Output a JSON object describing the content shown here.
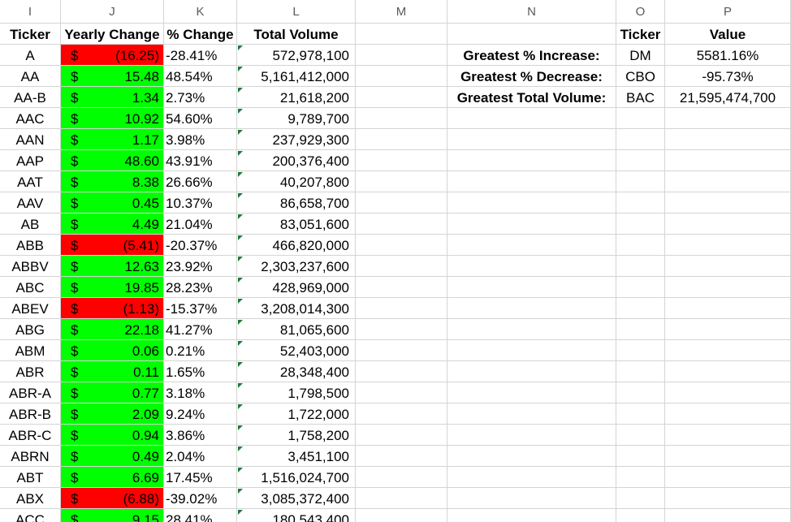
{
  "columns": [
    "I",
    "J",
    "K",
    "L",
    "M",
    "N",
    "O",
    "P"
  ],
  "headers": {
    "ticker": "Ticker",
    "yearly_change": "Yearly Change",
    "pct_change": "% Change",
    "total_volume": "Total Volume",
    "summary_ticker": "Ticker",
    "summary_value": "Value"
  },
  "colors": {
    "positive": "#00ff00",
    "negative": "#ff0000",
    "gridline": "#d4d4d4"
  },
  "currency_symbol": "$",
  "rows": [
    {
      "ticker": "A",
      "change": "(16.25)",
      "pct": "-28.41%",
      "volume": "572,978,100",
      "sign": "neg"
    },
    {
      "ticker": "AA",
      "change": "15.48",
      "pct": "48.54%",
      "volume": "5,161,412,000",
      "sign": "pos"
    },
    {
      "ticker": "AA-B",
      "change": "1.34",
      "pct": "2.73%",
      "volume": "21,618,200",
      "sign": "pos"
    },
    {
      "ticker": "AAC",
      "change": "10.92",
      "pct": "54.60%",
      "volume": "9,789,700",
      "sign": "pos"
    },
    {
      "ticker": "AAN",
      "change": "1.17",
      "pct": "3.98%",
      "volume": "237,929,300",
      "sign": "pos"
    },
    {
      "ticker": "AAP",
      "change": "48.60",
      "pct": "43.91%",
      "volume": "200,376,400",
      "sign": "pos"
    },
    {
      "ticker": "AAT",
      "change": "8.38",
      "pct": "26.66%",
      "volume": "40,207,800",
      "sign": "pos"
    },
    {
      "ticker": "AAV",
      "change": "0.45",
      "pct": "10.37%",
      "volume": "86,658,700",
      "sign": "pos"
    },
    {
      "ticker": "AB",
      "change": "4.49",
      "pct": "21.04%",
      "volume": "83,051,600",
      "sign": "pos"
    },
    {
      "ticker": "ABB",
      "change": "(5.41)",
      "pct": "-20.37%",
      "volume": "466,820,000",
      "sign": "neg"
    },
    {
      "ticker": "ABBV",
      "change": "12.63",
      "pct": "23.92%",
      "volume": "2,303,237,600",
      "sign": "pos"
    },
    {
      "ticker": "ABC",
      "change": "19.85",
      "pct": "28.23%",
      "volume": "428,969,000",
      "sign": "pos"
    },
    {
      "ticker": "ABEV",
      "change": "(1.13)",
      "pct": "-15.37%",
      "volume": "3,208,014,300",
      "sign": "neg"
    },
    {
      "ticker": "ABG",
      "change": "22.18",
      "pct": "41.27%",
      "volume": "81,065,600",
      "sign": "pos"
    },
    {
      "ticker": "ABM",
      "change": "0.06",
      "pct": "0.21%",
      "volume": "52,403,000",
      "sign": "pos"
    },
    {
      "ticker": "ABR",
      "change": "0.11",
      "pct": "1.65%",
      "volume": "28,348,400",
      "sign": "pos"
    },
    {
      "ticker": "ABR-A",
      "change": "0.77",
      "pct": "3.18%",
      "volume": "1,798,500",
      "sign": "pos"
    },
    {
      "ticker": "ABR-B",
      "change": "2.09",
      "pct": "9.24%",
      "volume": "1,722,000",
      "sign": "pos"
    },
    {
      "ticker": "ABR-C",
      "change": "0.94",
      "pct": "3.86%",
      "volume": "1,758,200",
      "sign": "pos"
    },
    {
      "ticker": "ABRN",
      "change": "0.49",
      "pct": "2.04%",
      "volume": "3,451,100",
      "sign": "pos"
    },
    {
      "ticker": "ABT",
      "change": "6.69",
      "pct": "17.45%",
      "volume": "1,516,024,700",
      "sign": "pos"
    },
    {
      "ticker": "ABX",
      "change": "(6.88)",
      "pct": "-39.02%",
      "volume": "3,085,372,400",
      "sign": "neg"
    },
    {
      "ticker": "ACC",
      "change": "9.15",
      "pct": "28.41%",
      "volume": "180,543,400",
      "sign": "pos"
    }
  ],
  "summary": [
    {
      "label": "Greatest % Increase:",
      "ticker": "DM",
      "value": "5581.16%"
    },
    {
      "label": "Greatest % Decrease:",
      "ticker": "CBO",
      "value": "-95.73%"
    },
    {
      "label": "Greatest Total Volume:",
      "ticker": "BAC",
      "value": "21,595,474,700"
    }
  ]
}
